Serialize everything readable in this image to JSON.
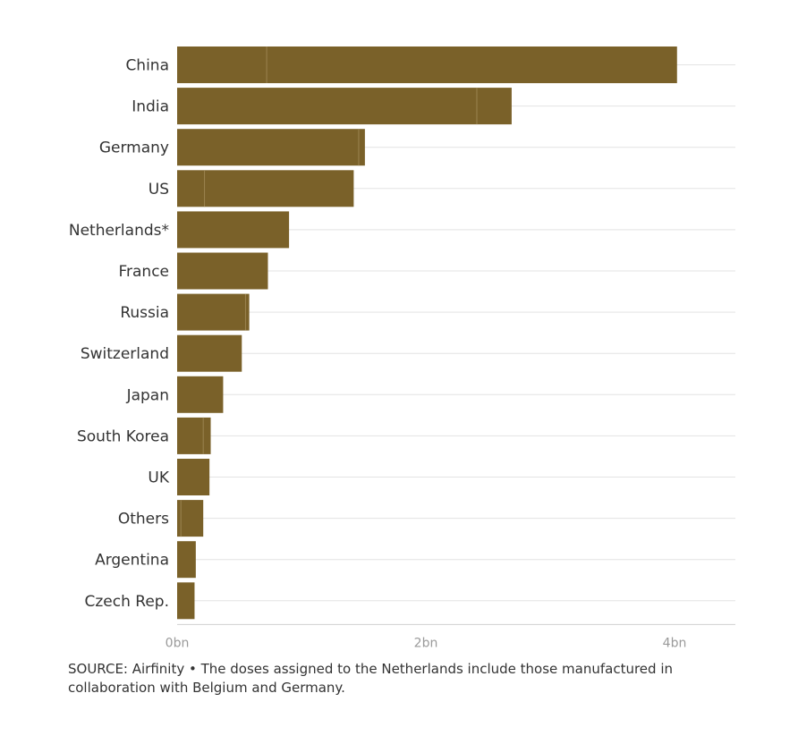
{
  "chart_data": {
    "type": "bar",
    "orientation": "horizontal",
    "categories": [
      "China",
      "India",
      "Germany",
      "US",
      "Netherlands*",
      "France",
      "Russia",
      "Switzerland",
      "Japan",
      "South Korea",
      "UK",
      "Others",
      "Argentina",
      "Czech Rep."
    ],
    "values": [
      4.02,
      2.69,
      1.51,
      1.42,
      0.9,
      0.73,
      0.58,
      0.52,
      0.37,
      0.27,
      0.26,
      0.21,
      0.15,
      0.14
    ],
    "segment_divisions": [
      0.72,
      2.41,
      1.46,
      0.22,
      null,
      null,
      0.55,
      null,
      null,
      0.21,
      null,
      0.03,
      null,
      null
    ],
    "x_ticks": [
      {
        "value": 0,
        "label": "0bn"
      },
      {
        "value": 2,
        "label": "2bn"
      },
      {
        "value": 4,
        "label": "4bn"
      }
    ],
    "xlim": [
      0,
      4.5
    ],
    "grid": true,
    "bar_color": "#7a6129"
  },
  "source_text": "SOURCE: Airfinity • The doses assigned to the Netherlands include those manufactured in collaboration with Belgium and Germany."
}
